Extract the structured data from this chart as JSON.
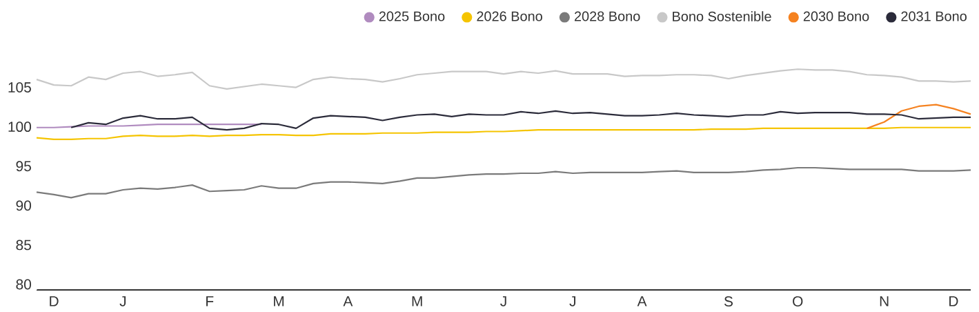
{
  "chart_data": {
    "type": "line",
    "legend": "top right",
    "ylim": [
      79.3,
      108.2
    ],
    "yticks": [
      80,
      85,
      90,
      95,
      100,
      105
    ],
    "categories": [
      null,
      "D",
      null,
      null,
      null,
      "J",
      null,
      null,
      null,
      null,
      "F",
      null,
      null,
      null,
      "M",
      null,
      null,
      null,
      "A",
      null,
      null,
      null,
      "M",
      null,
      null,
      null,
      null,
      "J",
      null,
      null,
      null,
      "J",
      null,
      null,
      null,
      "A",
      null,
      null,
      null,
      null,
      "S",
      null,
      null,
      null,
      "O",
      null,
      null,
      null,
      null,
      "N",
      null,
      null,
      null,
      "D",
      null
    ],
    "series": [
      {
        "name": "2025 Bono",
        "color": "#b08bbf",
        "values": [
          99.9,
          99.9,
          100.0,
          100.1,
          100.1,
          100.1,
          100.2,
          100.3,
          100.3,
          100.3,
          100.3,
          100.3,
          100.3,
          100.3,
          null,
          null,
          null,
          null,
          null,
          null,
          null,
          null,
          null,
          null,
          null,
          null,
          null,
          null,
          null,
          null,
          null,
          null,
          null,
          null,
          null,
          null,
          null,
          null,
          null,
          null,
          null,
          null,
          null,
          null,
          null,
          null,
          null,
          null,
          null,
          null,
          null,
          null,
          null,
          null,
          null
        ]
      },
      {
        "name": "2026 Bono",
        "color": "#f5c400",
        "values": [
          98.6,
          98.4,
          98.4,
          98.5,
          98.5,
          98.8,
          98.9,
          98.8,
          98.8,
          98.9,
          98.8,
          98.9,
          98.9,
          99.0,
          99.0,
          98.9,
          98.9,
          99.1,
          99.1,
          99.1,
          99.2,
          99.2,
          99.2,
          99.3,
          99.3,
          99.3,
          99.4,
          99.4,
          99.5,
          99.6,
          99.6,
          99.6,
          99.6,
          99.6,
          99.6,
          99.6,
          99.6,
          99.6,
          99.6,
          99.7,
          99.7,
          99.7,
          99.8,
          99.8,
          99.8,
          99.8,
          99.8,
          99.8,
          99.8,
          99.8,
          99.9,
          99.9,
          99.9,
          99.9,
          99.9
        ]
      },
      {
        "name": "2028 Bono",
        "color": "#7a7a7a",
        "values": [
          91.7,
          91.4,
          91.0,
          91.5,
          91.5,
          92.0,
          92.2,
          92.1,
          92.3,
          92.6,
          91.8,
          91.9,
          92.0,
          92.5,
          92.2,
          92.2,
          92.8,
          93.0,
          93.0,
          92.9,
          92.8,
          93.1,
          93.5,
          93.5,
          93.7,
          93.9,
          94.0,
          94.0,
          94.1,
          94.1,
          94.3,
          94.1,
          94.2,
          94.2,
          94.2,
          94.2,
          94.3,
          94.4,
          94.2,
          94.2,
          94.2,
          94.3,
          94.5,
          94.6,
          94.8,
          94.8,
          94.7,
          94.6,
          94.6,
          94.6,
          94.6,
          94.4,
          94.4,
          94.4,
          94.5
        ]
      },
      {
        "name": "Bono Sostenible",
        "color": "#c8c8c8",
        "values": [
          106.0,
          105.3,
          105.2,
          106.3,
          106.0,
          106.8,
          107.0,
          106.4,
          106.6,
          106.9,
          105.2,
          104.8,
          105.1,
          105.4,
          105.2,
          105.0,
          106.0,
          106.3,
          106.1,
          106.0,
          105.7,
          106.1,
          106.6,
          106.8,
          107.0,
          107.0,
          107.0,
          106.7,
          107.0,
          106.8,
          107.1,
          106.7,
          106.7,
          106.7,
          106.4,
          106.5,
          106.5,
          106.6,
          106.6,
          106.5,
          106.1,
          106.5,
          106.8,
          107.1,
          107.3,
          107.2,
          107.2,
          107.0,
          106.6,
          106.5,
          106.3,
          105.8,
          105.8,
          105.7,
          105.8
        ]
      },
      {
        "name": "2030 Bono",
        "color": "#f58220",
        "values": [
          null,
          null,
          null,
          null,
          null,
          null,
          null,
          null,
          null,
          null,
          null,
          null,
          null,
          null,
          null,
          null,
          null,
          null,
          null,
          null,
          null,
          null,
          null,
          null,
          null,
          null,
          null,
          null,
          null,
          null,
          null,
          null,
          null,
          null,
          null,
          null,
          null,
          null,
          null,
          null,
          null,
          null,
          null,
          null,
          null,
          null,
          null,
          null,
          99.8,
          100.6,
          102.0,
          102.6,
          102.8,
          102.3,
          101.6
        ]
      },
      {
        "name": "2031 Bono",
        "color": "#2b2b3a",
        "values": [
          null,
          null,
          99.9,
          100.5,
          100.3,
          101.1,
          101.4,
          101.0,
          101.0,
          101.2,
          99.8,
          99.6,
          99.8,
          100.4,
          100.3,
          99.8,
          101.1,
          101.4,
          101.3,
          101.2,
          100.8,
          101.2,
          101.5,
          101.6,
          101.3,
          101.6,
          101.5,
          101.5,
          101.9,
          101.7,
          102.0,
          101.7,
          101.8,
          101.6,
          101.4,
          101.4,
          101.5,
          101.7,
          101.5,
          101.4,
          101.3,
          101.5,
          101.5,
          101.9,
          101.7,
          101.8,
          101.8,
          101.8,
          101.6,
          101.6,
          101.5,
          101.0,
          101.1,
          101.2,
          101.2
        ]
      }
    ]
  }
}
